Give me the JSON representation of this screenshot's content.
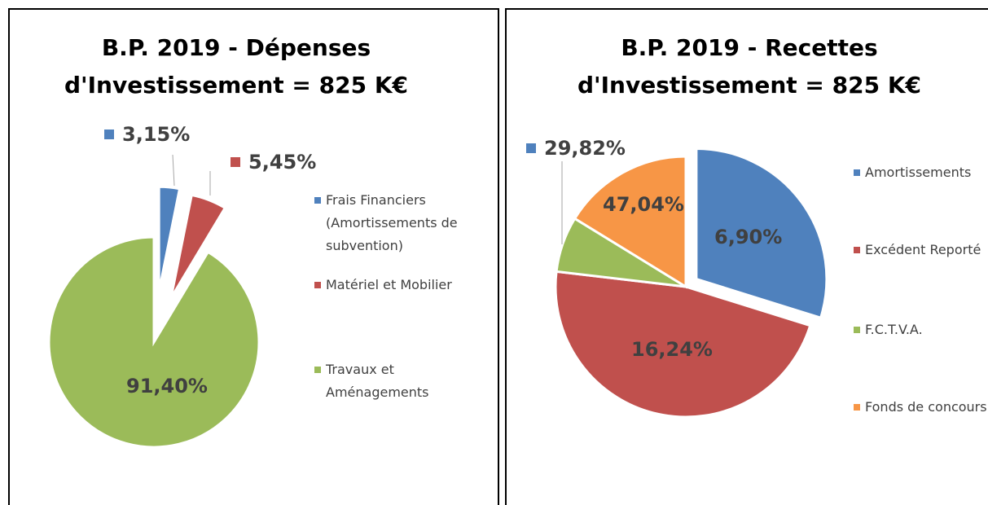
{
  "chart_data": [
    {
      "type": "pie",
      "title": "B.P. 2019 - Dépenses d'Investissement = 825 K€",
      "categories": [
        "Frais Financiers (Amortissements de subvention)",
        "Matériel et Mobilier",
        "Travaux et Aménagements"
      ],
      "values": [
        3.15,
        5.45,
        91.4
      ],
      "value_labels": [
        "3,15%",
        "5,45%",
        "91,40%"
      ],
      "colors": [
        "#4f81bd",
        "#c0504d",
        "#9bbb59"
      ],
      "legend": "right"
    },
    {
      "type": "pie",
      "title": "B.P. 2019 - Recettes d'Investissement = 825 K€",
      "categories": [
        "Amortissements",
        "Excédent Reporté",
        "F.C.T.V.A.",
        "Fonds de concours"
      ],
      "values": [
        29.82,
        47.04,
        6.9,
        16.24
      ],
      "value_labels": [
        "29,82%",
        "47,04%",
        "6,90%",
        "16,24%"
      ],
      "colors": [
        "#4f81bd",
        "#c0504d",
        "#9bbb59",
        "#f79646"
      ],
      "legend": "right"
    }
  ]
}
